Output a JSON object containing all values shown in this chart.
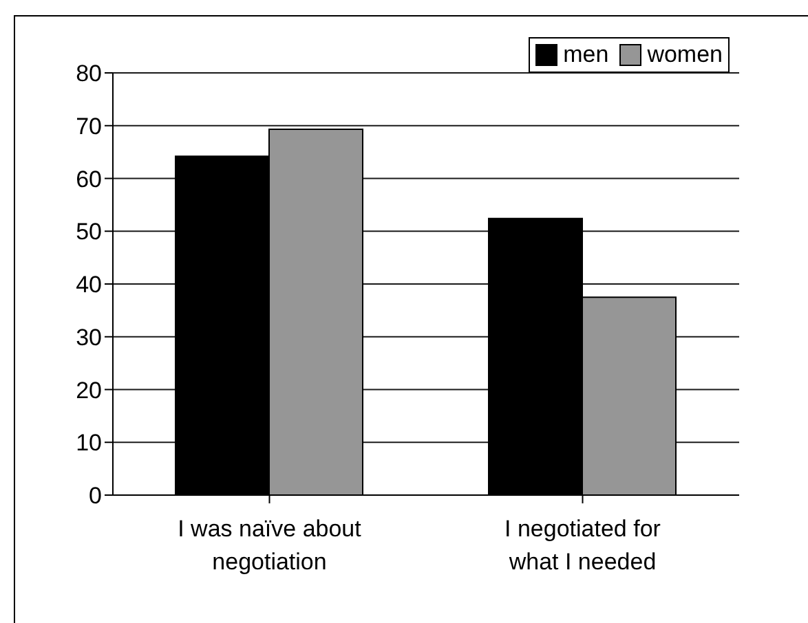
{
  "chart_data": {
    "type": "bar",
    "categories": [
      "I was naïve about negotiation",
      "I negotiated for what I needed"
    ],
    "series": [
      {
        "name": "men",
        "color": "#000000",
        "values": [
          64.2,
          52.4
        ]
      },
      {
        "name": "women",
        "color": "#969696",
        "values": [
          69.3,
          37.5
        ]
      }
    ],
    "ylim": [
      0,
      80
    ],
    "yticks": [
      0,
      10,
      20,
      30,
      40,
      50,
      60,
      70,
      80
    ],
    "grid": "y",
    "legend": "top right"
  }
}
